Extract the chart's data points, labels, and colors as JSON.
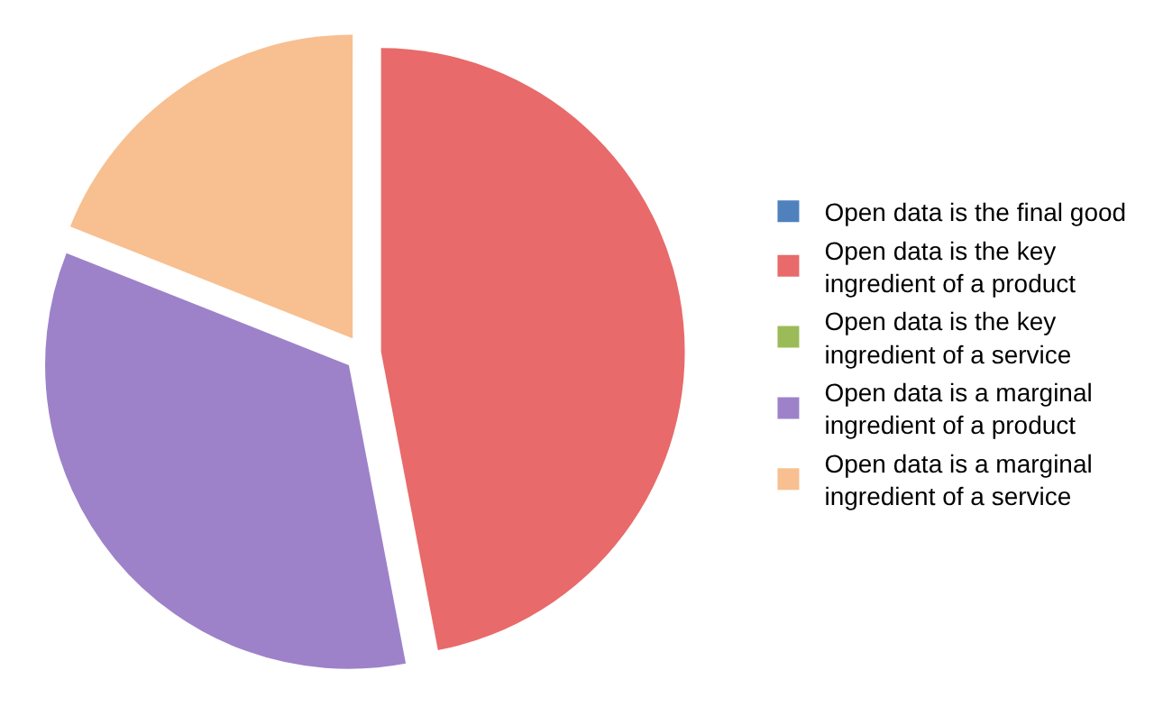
{
  "chart_data": {
    "type": "pie",
    "categories": [
      "Open data is the final good",
      "Open data is the key ingredient of a product",
      "Open data is the key ingredient of a service",
      "Open data is a marginal ingredient of a product",
      "Open data is a marginal ingredient of a service"
    ],
    "values": [
      0,
      47,
      0,
      34,
      19
    ],
    "colors": [
      "#4f81bd",
      "#e86a6a",
      "#9bbb59",
      "#9d82c9",
      "#f8bf90"
    ],
    "legend": "right"
  }
}
